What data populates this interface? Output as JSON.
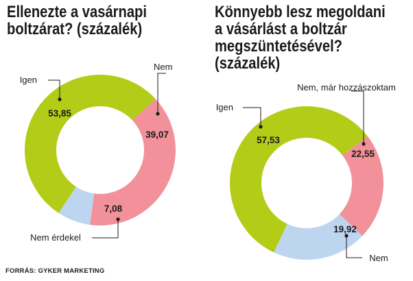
{
  "chart_data": [
    {
      "type": "pie",
      "title": "Ellenezte a vasárnapi boltzárat? (százalék)",
      "title_lines": [
        "Ellenezte a vasárnapi",
        "boltzárat? (százalék)"
      ],
      "slices": [
        {
          "label": "Igen",
          "value": 53.85,
          "value_label": "53,85",
          "color": "#b3cc18"
        },
        {
          "label": "Nem",
          "value": 39.07,
          "value_label": "39,07",
          "color": "#f29199"
        },
        {
          "label": "Nem érdekel",
          "value": 7.08,
          "value_label": "7,08",
          "color": "#bdd5ee"
        }
      ]
    },
    {
      "type": "pie",
      "title": "Könnyebb lesz megoldani a vásárlást a boltzár megszüntetésével? (százalék)",
      "title_lines": [
        "Könnyebb lesz megoldani",
        "a vásárlást a boltzár",
        "megszüntetésével?",
        "(százalék)"
      ],
      "slices": [
        {
          "label": "Igen",
          "value": 57.53,
          "value_label": "57,53",
          "color": "#b3cc18"
        },
        {
          "label": "Nem, már hozzászoktam",
          "value": 22.55,
          "value_label": "22,55",
          "color": "#f29199"
        },
        {
          "label": "Nem",
          "value": 19.92,
          "value_label": "19,92",
          "color": "#bdd5ee"
        }
      ]
    }
  ],
  "source": "FORRÁS: GYKER MARKETING"
}
